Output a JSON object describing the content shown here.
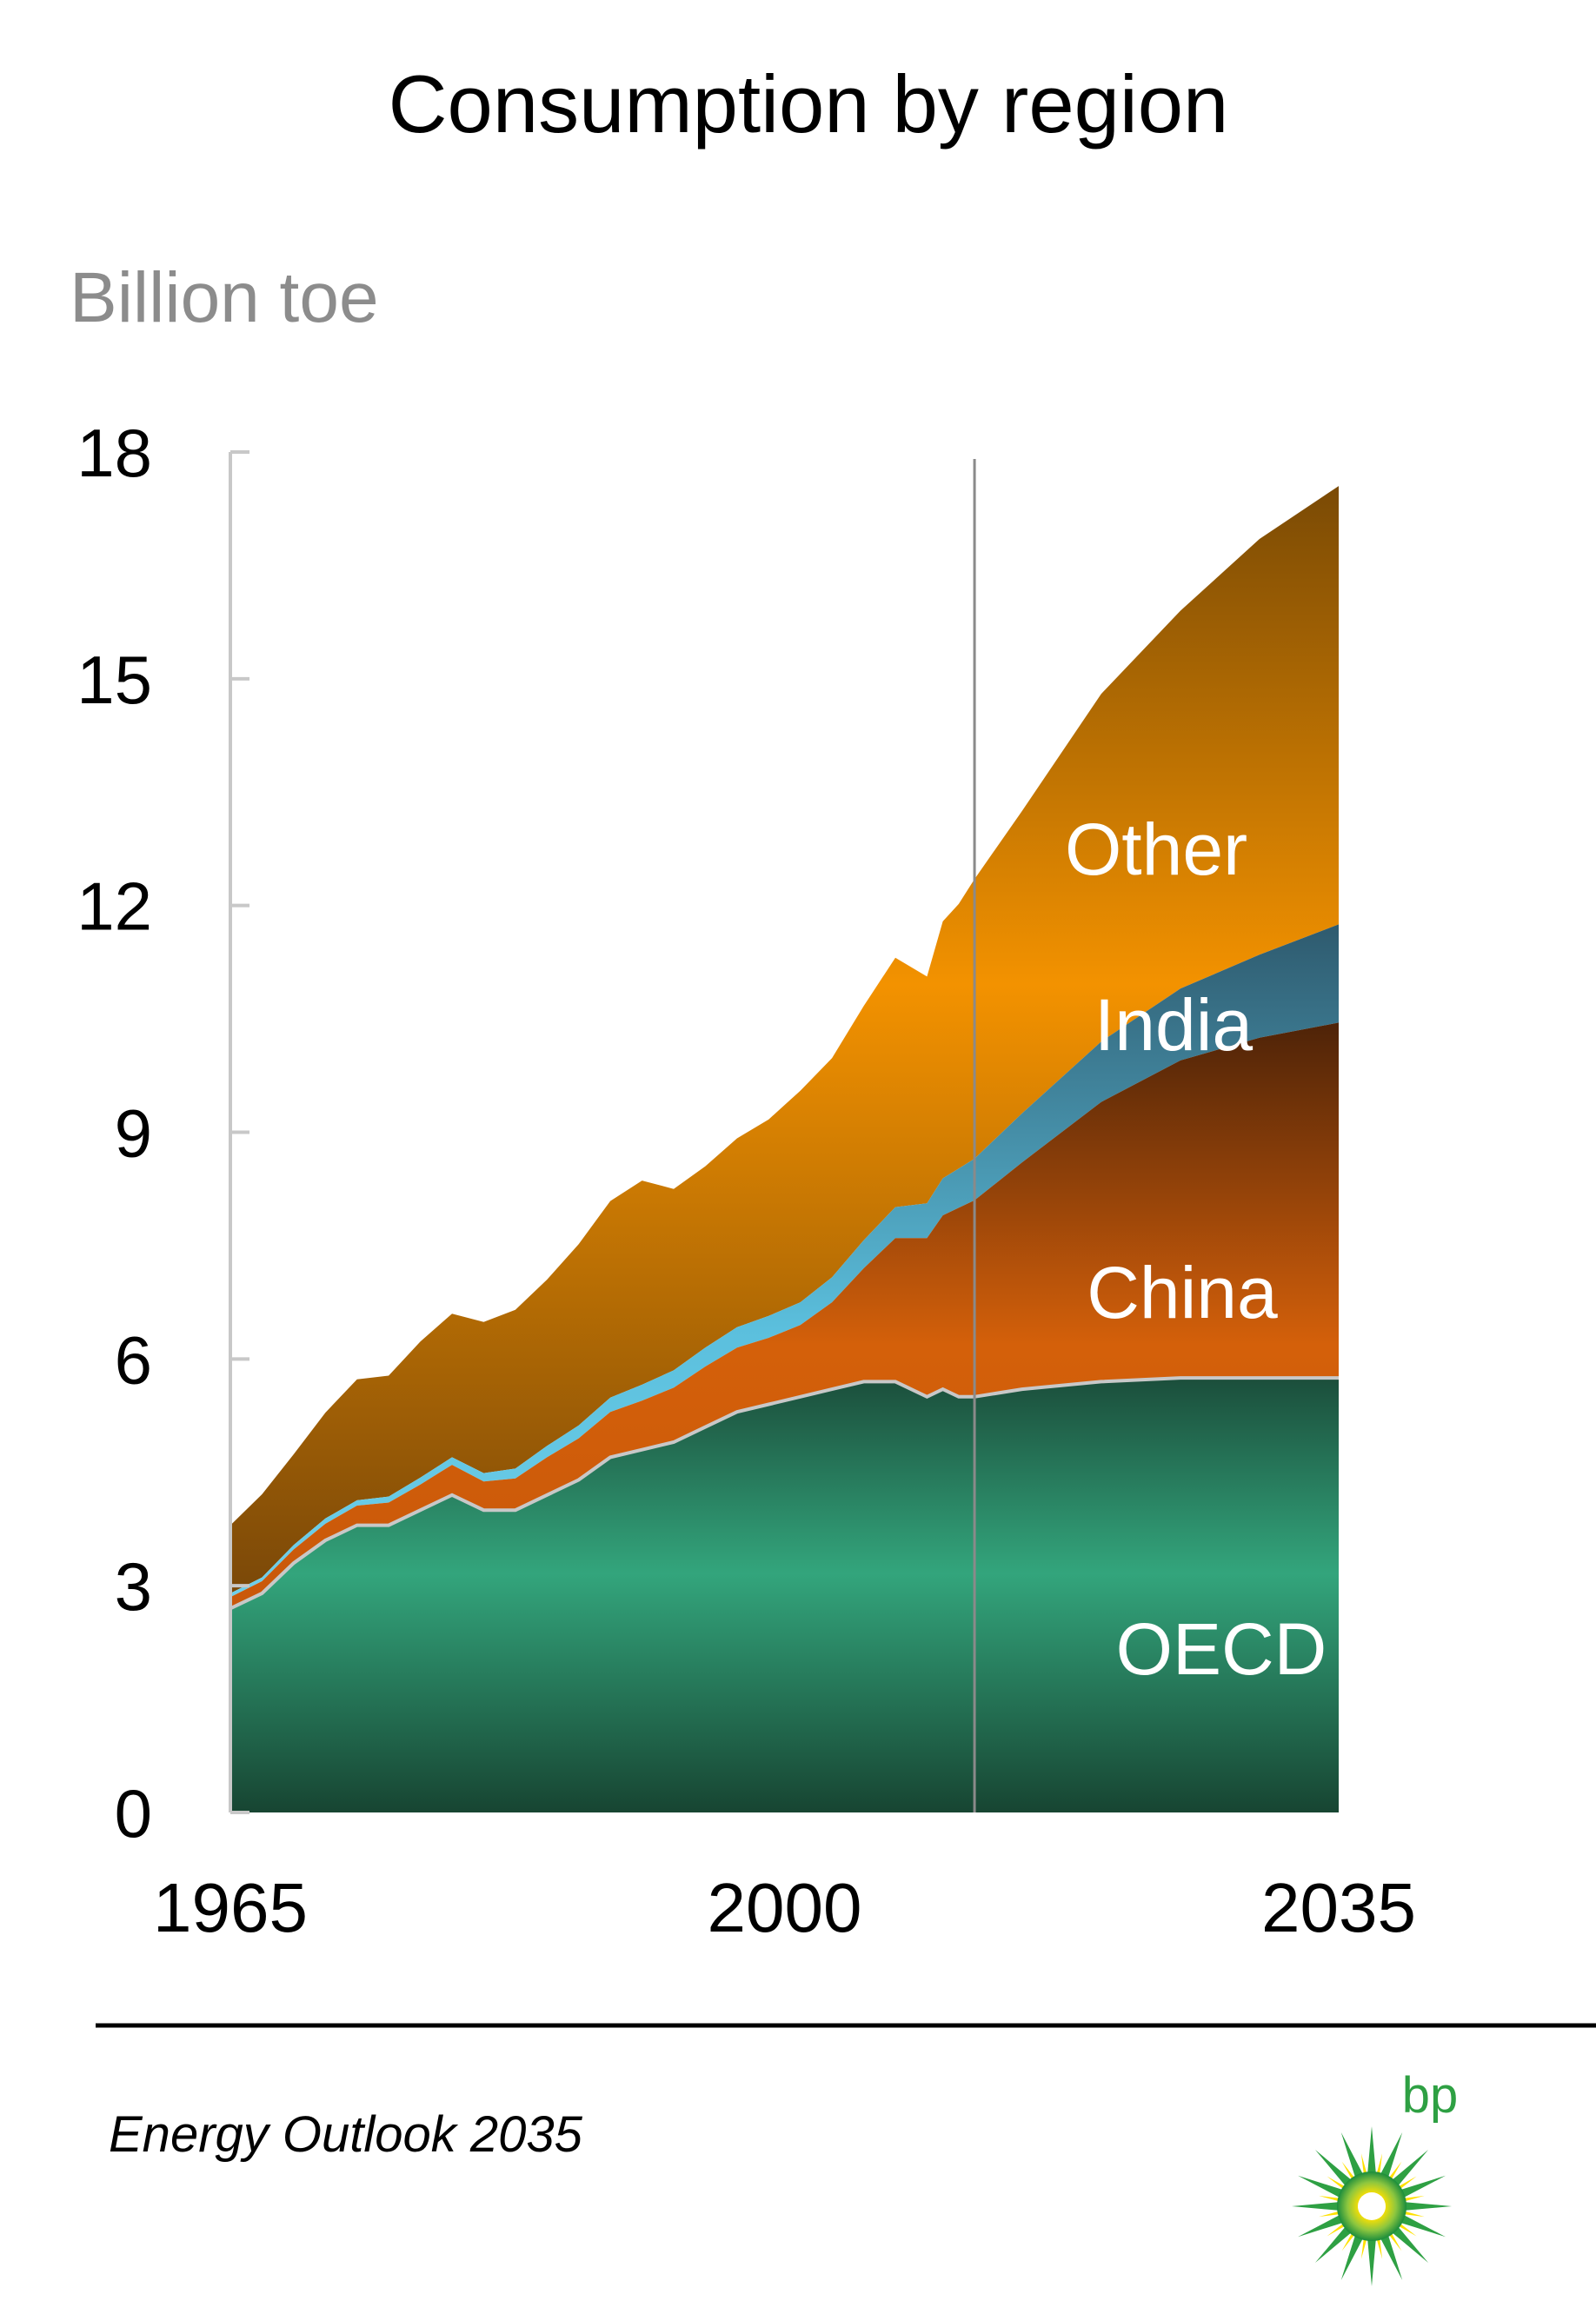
{
  "chart_data": {
    "type": "area",
    "title": "Consumption by region",
    "ylabel": "Billion toe",
    "xlim": [
      1965,
      2035
    ],
    "ylim": [
      0,
      18
    ],
    "y_ticks": [
      "0",
      "3",
      "6",
      "9",
      "12",
      "15",
      "18"
    ],
    "x_ticks": [
      "1965",
      "2000",
      "2035"
    ],
    "x_tick_values": [
      1965,
      2000,
      2035
    ],
    "y_tick_values": [
      0,
      3,
      6,
      9,
      12,
      15,
      18
    ],
    "projection_start": 2012,
    "x": [
      1965,
      1967,
      1969,
      1971,
      1973,
      1975,
      1977,
      1979,
      1981,
      1983,
      1985,
      1987,
      1989,
      1991,
      1993,
      1995,
      1997,
      1999,
      2001,
      2003,
      2005,
      2007,
      2009,
      2010,
      2011,
      2012,
      2015,
      2020,
      2025,
      2030,
      2035
    ],
    "series": [
      {
        "name": "OECD",
        "color": "#33a57c",
        "values": [
          2.7,
          2.9,
          3.3,
          3.6,
          3.8,
          3.8,
          4.0,
          4.2,
          4.0,
          4.0,
          4.2,
          4.4,
          4.7,
          4.8,
          4.9,
          5.1,
          5.3,
          5.4,
          5.5,
          5.6,
          5.7,
          5.7,
          5.5,
          5.6,
          5.5,
          5.5,
          5.6,
          5.7,
          5.75,
          5.75,
          5.75
        ]
      },
      {
        "name": "China",
        "color": "#d4600a",
        "values": [
          0.15,
          0.16,
          0.18,
          0.22,
          0.26,
          0.3,
          0.34,
          0.4,
          0.38,
          0.42,
          0.5,
          0.55,
          0.6,
          0.65,
          0.72,
          0.8,
          0.85,
          0.88,
          0.95,
          1.15,
          1.5,
          1.9,
          2.1,
          2.3,
          2.5,
          2.6,
          3.0,
          3.7,
          4.2,
          4.5,
          4.7
        ]
      },
      {
        "name": "India",
        "color": "#5bbfdd",
        "values": [
          0.05,
          0.05,
          0.06,
          0.07,
          0.07,
          0.08,
          0.09,
          0.1,
          0.11,
          0.13,
          0.15,
          0.17,
          0.19,
          0.21,
          0.23,
          0.25,
          0.27,
          0.29,
          0.3,
          0.33,
          0.37,
          0.41,
          0.46,
          0.49,
          0.52,
          0.55,
          0.65,
          0.8,
          0.95,
          1.1,
          1.3
        ]
      },
      {
        "name": "Other",
        "color": "#f39200",
        "values": [
          0.9,
          1.1,
          1.2,
          1.4,
          1.6,
          1.6,
          1.8,
          1.9,
          2.0,
          2.1,
          2.2,
          2.4,
          2.6,
          2.7,
          2.4,
          2.4,
          2.5,
          2.6,
          2.8,
          2.9,
          3.1,
          3.3,
          3.0,
          3.4,
          3.5,
          3.7,
          4.0,
          4.6,
          5.0,
          5.5,
          5.8
        ]
      }
    ]
  },
  "labels": {
    "other": "Other",
    "india": "India",
    "china": "China",
    "oecd": "OECD"
  },
  "footer": {
    "publication": "Energy Outlook 2035"
  },
  "logo": {
    "text": "bp",
    "brand_green": "#2ea043",
    "brand_yellow": "#ffe100"
  }
}
